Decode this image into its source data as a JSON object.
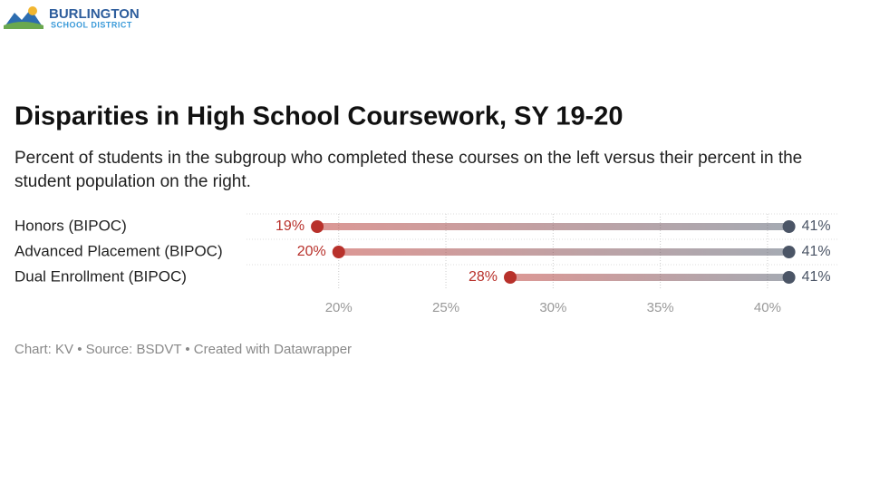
{
  "logo": {
    "name": "BURLINGTON",
    "tagline": "SCHOOL DISTRICT"
  },
  "chart_data": {
    "type": "dumbbell",
    "title": "Disparities in High School Coursework, SY 19-20",
    "subtitle": "Percent of students in the subgroup who completed these courses on the left versus their percent in the student population on the right.",
    "categories": [
      "Honors (BIPOC)",
      "Advanced Placement (BIPOC)",
      "Dual Enrollment (BIPOC)"
    ],
    "series": [
      {
        "color": "#b8312b",
        "values": [
          19,
          20,
          28
        ],
        "value_labels": [
          "19%",
          "20%",
          "28%"
        ]
      },
      {
        "color": "#4b5566",
        "values": [
          41,
          41,
          41
        ],
        "value_labels": [
          "41%",
          "41%",
          "41%"
        ]
      }
    ],
    "xlim": [
      15.7,
      43.3
    ],
    "xticks": [
      {
        "value": 20,
        "label": "20%"
      },
      {
        "value": 25,
        "label": "25%"
      },
      {
        "value": 30,
        "label": "30%"
      },
      {
        "value": 35,
        "label": "35%"
      },
      {
        "value": 40,
        "label": "40%"
      }
    ],
    "grid": true,
    "footer": "Chart: KV • Source: BSDVT • Created with Datawrapper"
  }
}
